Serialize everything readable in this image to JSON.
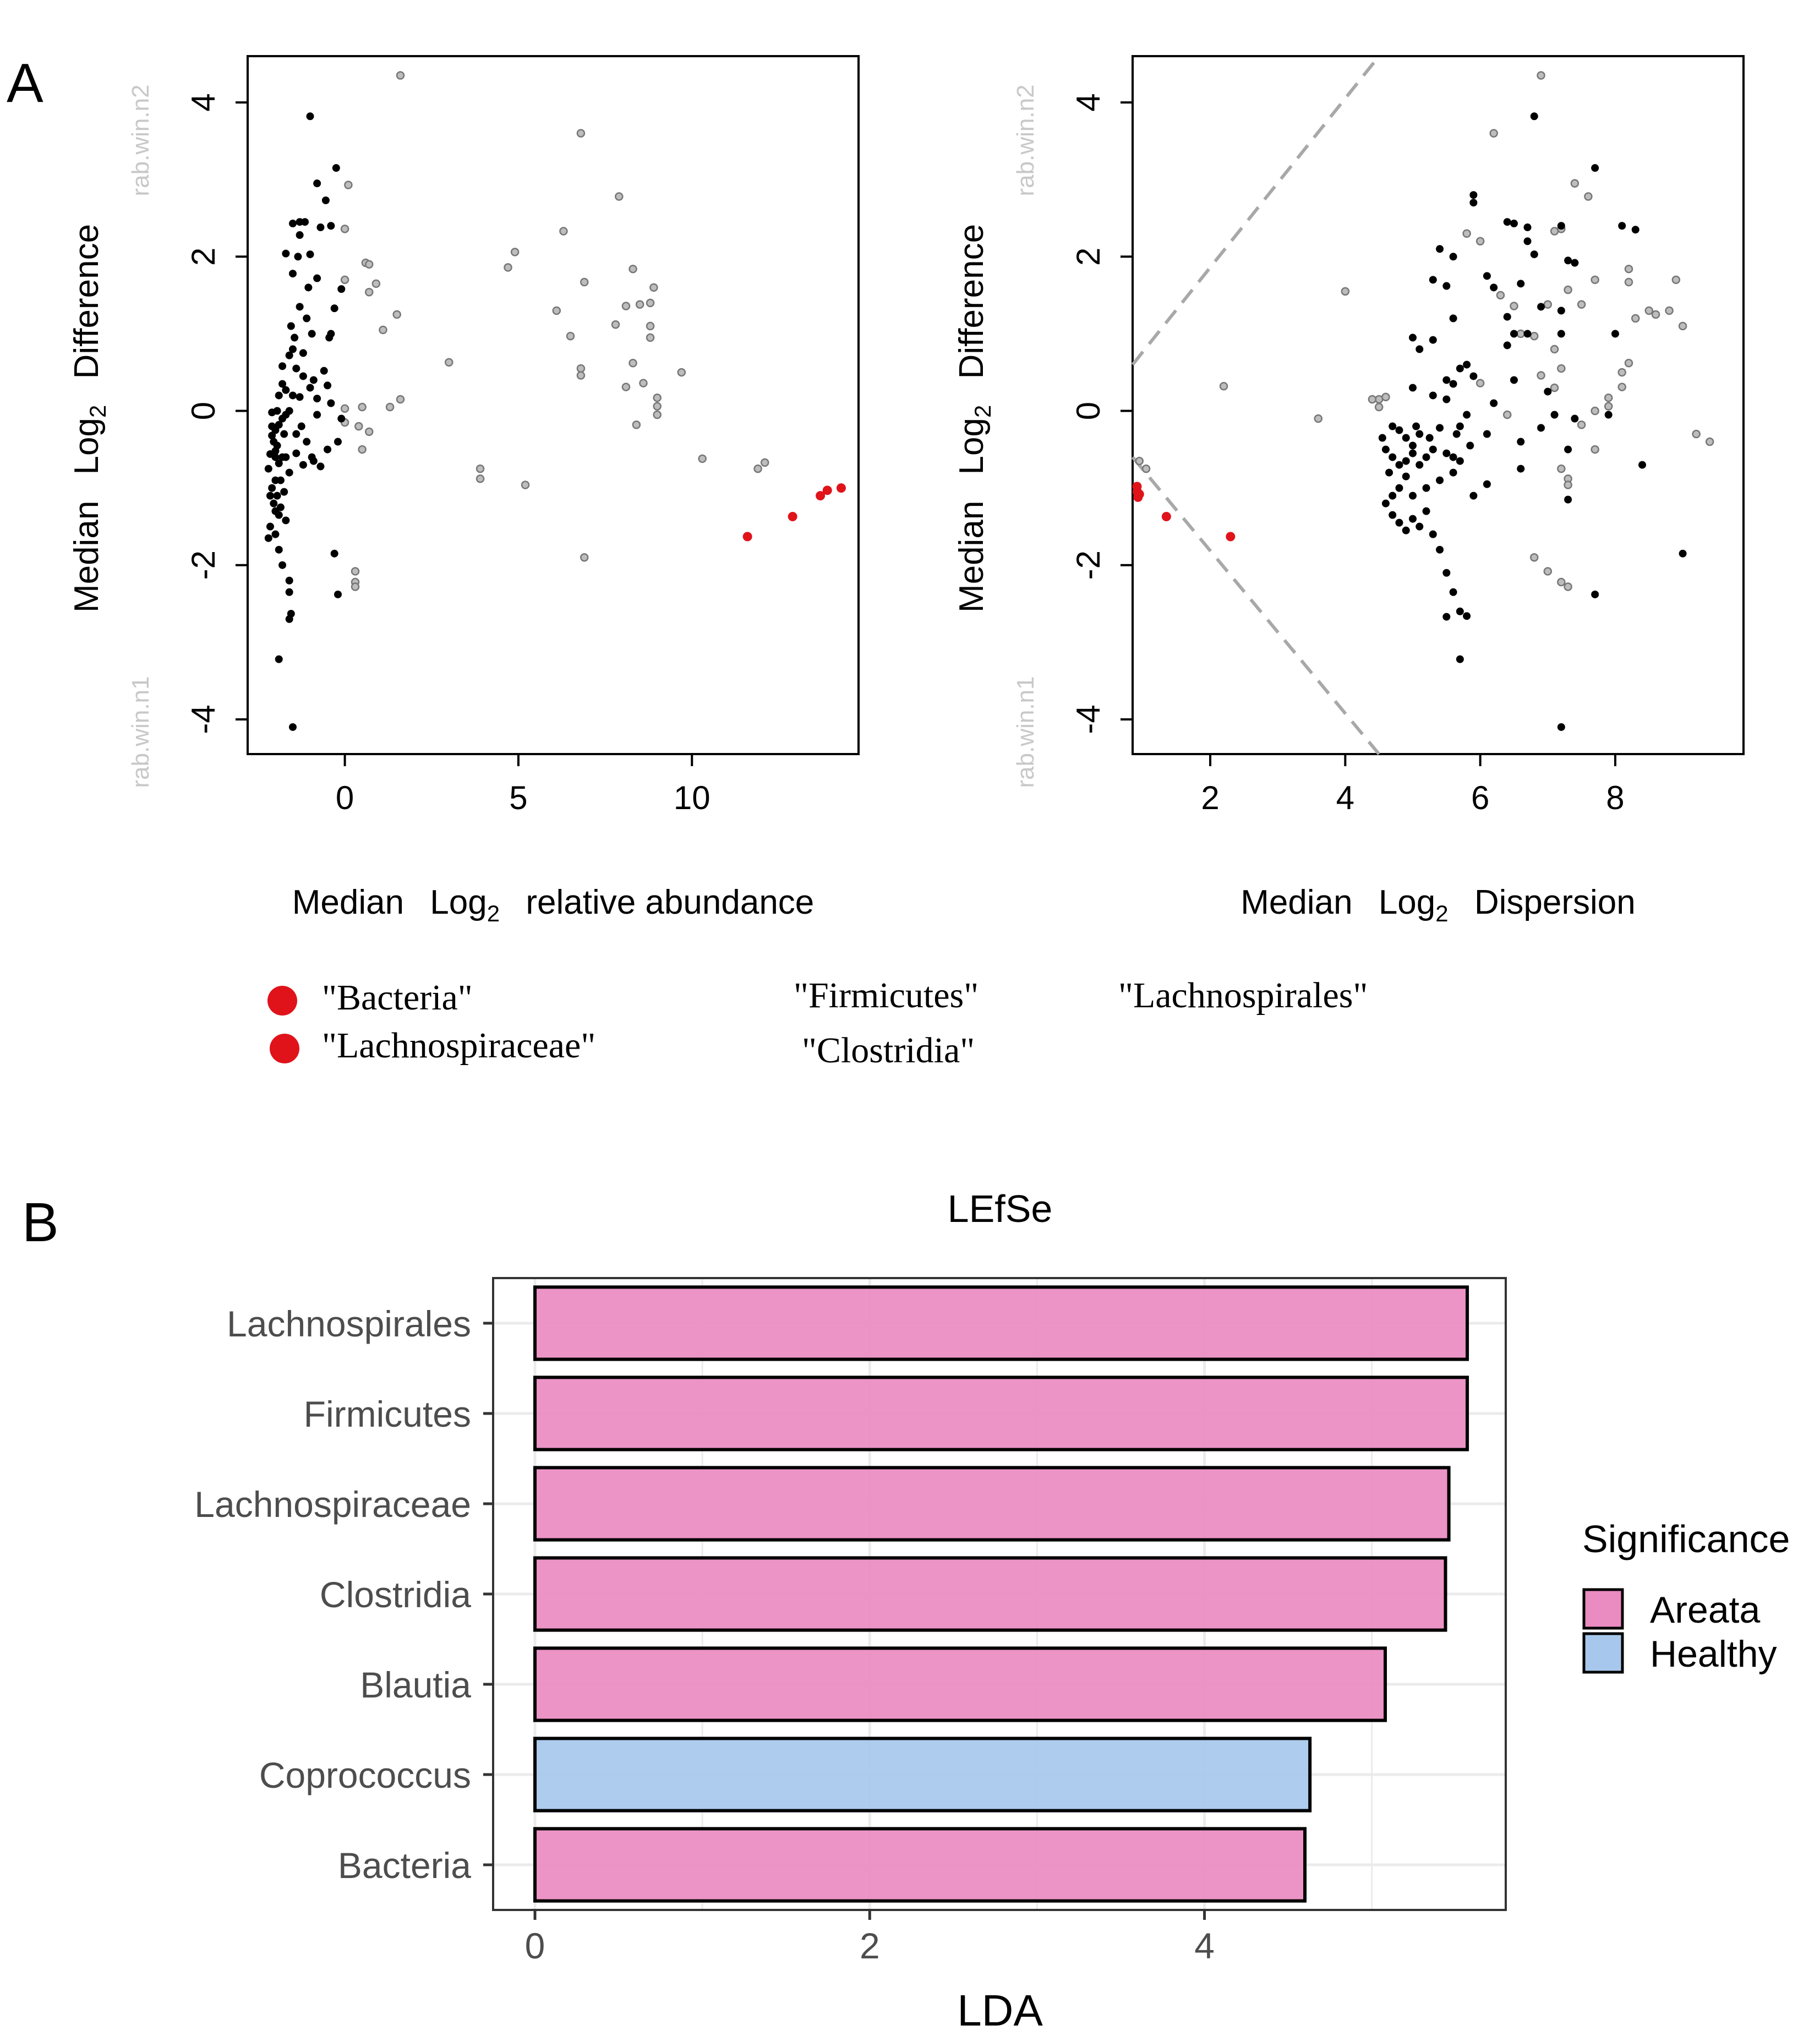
{
  "panel_labels": {
    "a": "A",
    "b": "B"
  },
  "colors": {
    "significant": "#e0131a",
    "abundant_dot": "#000000",
    "rare_dot": "#9e9e9e",
    "tick_text_gray": "#bdbdbd",
    "areata": "#ea8bc1",
    "healthy": "#a7c8ec",
    "effect_line": "#a8a8a8"
  },
  "legend_a": {
    "items": [
      "\"Bacteria\"",
      "\"Lachnospiraceae\""
    ],
    "extra_labels": [
      "\"Firmicutes\"",
      "\"Lachnospirales\"",
      "\"Clostridia\""
    ]
  },
  "chart_data": [
    {
      "id": "bland_altman",
      "type": "scatter",
      "xlabel": {
        "pre": "Median",
        "log": "Log",
        "sub": "2",
        "post": "relative abundance"
      },
      "ylabel": {
        "pre": "Median",
        "log": "Log",
        "sub": "2",
        "post": "Difference"
      },
      "group_top": "rab.win.n2",
      "group_bottom": "rab.win.n1",
      "xlim": [
        -2.8,
        14.8
      ],
      "ylim": [
        -4.45,
        4.6
      ],
      "xticks": [
        0,
        5,
        10
      ],
      "yticks": [
        -4,
        -2,
        0,
        2,
        4
      ],
      "significant": [
        [
          11.6,
          -1.63
        ],
        [
          12.9,
          -1.37
        ],
        [
          13.7,
          -1.1
        ],
        [
          13.9,
          -1.03
        ],
        [
          14.3,
          -1.0
        ]
      ],
      "rare": [
        [
          1.6,
          4.35
        ],
        [
          6.8,
          3.6
        ],
        [
          7.9,
          2.78
        ],
        [
          6.3,
          2.33
        ],
        [
          4.9,
          2.06
        ],
        [
          4.7,
          1.86
        ],
        [
          8.3,
          1.84
        ],
        [
          6.9,
          1.67
        ],
        [
          8.9,
          1.6
        ],
        [
          8.5,
          1.38
        ],
        [
          8.1,
          1.36
        ],
        [
          8.8,
          1.4
        ],
        [
          6.1,
          1.3
        ],
        [
          7.8,
          1.12
        ],
        [
          8.8,
          1.1
        ],
        [
          8.8,
          0.95
        ],
        [
          6.5,
          0.97
        ],
        [
          6.8,
          0.55
        ],
        [
          6.8,
          0.46
        ],
        [
          8.3,
          0.62
        ],
        [
          9.7,
          0.5
        ],
        [
          8.6,
          0.36
        ],
        [
          8.1,
          0.31
        ],
        [
          9.0,
          0.17
        ],
        [
          9.0,
          0.06
        ],
        [
          9.0,
          -0.05
        ],
        [
          8.4,
          -0.18
        ],
        [
          3.0,
          0.63
        ],
        [
          10.3,
          -0.62
        ],
        [
          11.9,
          -0.75
        ],
        [
          12.1,
          -0.67
        ],
        [
          3.9,
          -0.75
        ],
        [
          3.9,
          -0.88
        ],
        [
          5.2,
          -0.96
        ],
        [
          6.9,
          -1.9
        ],
        [
          0.1,
          2.93
        ],
        [
          0.6,
          1.92
        ],
        [
          0.7,
          1.9
        ],
        [
          0.9,
          1.65
        ],
        [
          0.7,
          1.54
        ],
        [
          1.5,
          1.25
        ],
        [
          1.1,
          1.05
        ],
        [
          0.0,
          1.7
        ],
        [
          1.6,
          0.15
        ],
        [
          1.3,
          0.05
        ],
        [
          0.5,
          0.05
        ],
        [
          0.4,
          -0.2
        ],
        [
          0.7,
          -0.27
        ],
        [
          0.3,
          -2.08
        ],
        [
          0.3,
          -2.22
        ],
        [
          0.3,
          -2.28
        ],
        [
          0.0,
          -0.15
        ],
        [
          0.0,
          0.03
        ],
        [
          0.5,
          -0.5
        ],
        [
          0.0,
          2.36
        ]
      ],
      "abundant": [
        [
          -1.0,
          3.82
        ],
        [
          -0.25,
          3.15
        ],
        [
          -0.8,
          2.95
        ],
        [
          -0.55,
          2.73
        ],
        [
          -1.3,
          2.45
        ],
        [
          -1.5,
          2.43
        ],
        [
          -1.3,
          2.28
        ],
        [
          -0.7,
          2.38
        ],
        [
          -0.4,
          2.4
        ],
        [
          -1.0,
          2.03
        ],
        [
          -1.7,
          2.04
        ],
        [
          -1.5,
          1.78
        ],
        [
          -0.8,
          1.72
        ],
        [
          -0.1,
          1.58
        ],
        [
          -0.3,
          1.33
        ],
        [
          -1.3,
          1.35
        ],
        [
          -1.1,
          1.2
        ],
        [
          -1.55,
          1.1
        ],
        [
          -0.95,
          1.0
        ],
        [
          -0.4,
          1.0
        ],
        [
          -0.45,
          0.95
        ],
        [
          -1.5,
          0.8
        ],
        [
          -1.6,
          0.72
        ],
        [
          -1.2,
          0.75
        ],
        [
          -1.8,
          0.58
        ],
        [
          -1.4,
          0.55
        ],
        [
          -0.9,
          0.4
        ],
        [
          -0.5,
          0.33
        ],
        [
          -1.7,
          0.27
        ],
        [
          -1.9,
          0.2
        ],
        [
          -1.3,
          0.18
        ],
        [
          -0.8,
          0.16
        ],
        [
          -0.4,
          0.1
        ],
        [
          -1.6,
          0.0
        ],
        [
          -2.1,
          -0.02
        ],
        [
          -1.8,
          -0.1
        ],
        [
          -1.9,
          -0.18
        ],
        [
          -2.0,
          -0.25
        ],
        [
          -2.1,
          -0.32
        ],
        [
          -2.05,
          -0.4
        ],
        [
          -1.95,
          -0.45
        ],
        [
          -2.0,
          -0.52
        ],
        [
          -2.15,
          -0.56
        ],
        [
          -1.8,
          -0.6
        ],
        [
          -1.9,
          -0.68
        ],
        [
          -2.2,
          -0.75
        ],
        [
          -1.7,
          -0.6
        ],
        [
          -1.4,
          -0.55
        ],
        [
          -0.5,
          -0.5
        ],
        [
          -0.9,
          -0.65
        ],
        [
          -0.7,
          -0.72
        ],
        [
          -1.2,
          -0.7
        ],
        [
          -1.6,
          -0.8
        ],
        [
          -2.0,
          -0.9
        ],
        [
          -2.1,
          -1.0
        ],
        [
          -1.95,
          -1.1
        ],
        [
          -2.05,
          -1.2
        ],
        [
          -2.0,
          -1.3
        ],
        [
          -1.9,
          -1.35
        ],
        [
          -2.15,
          -1.5
        ],
        [
          -1.7,
          -1.42
        ],
        [
          -2.0,
          -1.6
        ],
        [
          -1.9,
          -1.8
        ],
        [
          -1.8,
          -2.0
        ],
        [
          -1.6,
          -2.2
        ],
        [
          -1.6,
          -2.35
        ],
        [
          -1.55,
          -2.63
        ],
        [
          -1.6,
          -2.7
        ],
        [
          -1.9,
          -3.22
        ],
        [
          -1.5,
          -4.1
        ],
        [
          -0.3,
          -1.85
        ],
        [
          -0.2,
          -2.38
        ],
        [
          -0.1,
          -0.1
        ],
        [
          -0.2,
          -0.4
        ],
        [
          -1.2,
          0.45
        ],
        [
          -1.0,
          0.3
        ],
        [
          -0.6,
          0.52
        ],
        [
          -1.45,
          0.95
        ],
        [
          -1.8,
          0.35
        ],
        [
          -1.95,
          0.0
        ],
        [
          -2.1,
          -0.2
        ],
        [
          -2.0,
          -0.6
        ],
        [
          -1.85,
          -0.9
        ],
        [
          -1.75,
          -1.05
        ],
        [
          -1.85,
          -1.25
        ],
        [
          -2.15,
          -1.1
        ],
        [
          -2.2,
          -1.65
        ],
        [
          -1.75,
          -0.3
        ],
        [
          -1.7,
          -0.05
        ],
        [
          -1.5,
          0.2
        ],
        [
          -1.4,
          -0.3
        ],
        [
          -1.25,
          -0.2
        ],
        [
          -1.1,
          -0.4
        ],
        [
          -0.95,
          -0.6
        ],
        [
          -0.8,
          -0.05
        ],
        [
          -1.05,
          1.6
        ],
        [
          -1.35,
          2.0
        ],
        [
          -1.15,
          2.45
        ]
      ]
    },
    {
      "id": "effect_plot",
      "type": "scatter",
      "xlabel": {
        "pre": "Median",
        "log": "Log",
        "sub": "2",
        "post": "Dispersion"
      },
      "ylabel": {
        "pre": "Median",
        "log": "Log",
        "sub": "2",
        "post": "Difference"
      },
      "group_top": "rab.win.n2",
      "group_bottom": "rab.win.n1",
      "xlim": [
        0.85,
        9.9
      ],
      "ylim": [
        -4.45,
        4.6
      ],
      "xticks": [
        2,
        4,
        6,
        8
      ],
      "yticks": [
        -4,
        -2,
        0,
        2,
        4
      ],
      "effect_lines": [
        [
          [
            0.85,
            0.6
          ],
          [
            4.5,
            4.6
          ]
        ],
        [
          [
            0.85,
            -0.6
          ],
          [
            4.5,
            -4.45
          ]
        ]
      ],
      "significant": [
        [
          0.9,
          -0.98
        ],
        [
          0.92,
          -1.05
        ],
        [
          0.95,
          -1.08
        ],
        [
          0.93,
          -1.12
        ],
        [
          1.35,
          -1.37
        ],
        [
          2.3,
          -1.63
        ]
      ],
      "rare": [
        [
          6.9,
          4.35
        ],
        [
          6.2,
          3.6
        ],
        [
          7.4,
          2.95
        ],
        [
          7.6,
          2.78
        ],
        [
          7.1,
          2.33
        ],
        [
          7.2,
          2.36
        ],
        [
          8.2,
          1.84
        ],
        [
          8.2,
          1.67
        ],
        [
          8.9,
          1.7
        ],
        [
          7.7,
          1.7
        ],
        [
          7.3,
          1.57
        ],
        [
          6.3,
          1.5
        ],
        [
          7.0,
          1.38
        ],
        [
          6.5,
          1.36
        ],
        [
          7.5,
          1.38
        ],
        [
          8.8,
          1.3
        ],
        [
          9.0,
          1.1
        ],
        [
          6.6,
          1.0
        ],
        [
          6.8,
          0.97
        ],
        [
          7.1,
          0.8
        ],
        [
          8.2,
          0.62
        ],
        [
          8.1,
          0.5
        ],
        [
          7.2,
          0.55
        ],
        [
          6.9,
          0.46
        ],
        [
          6.0,
          0.36
        ],
        [
          7.1,
          0.3
        ],
        [
          8.1,
          0.31
        ],
        [
          7.9,
          0.17
        ],
        [
          7.9,
          0.06
        ],
        [
          7.7,
          0.0
        ],
        [
          7.5,
          -0.18
        ],
        [
          7.2,
          -0.75
        ],
        [
          7.3,
          -0.88
        ],
        [
          7.3,
          -0.96
        ],
        [
          6.8,
          -1.9
        ],
        [
          7.0,
          -2.08
        ],
        [
          7.2,
          -2.22
        ],
        [
          7.3,
          -2.28
        ],
        [
          4.0,
          1.55
        ],
        [
          2.2,
          0.32
        ],
        [
          3.6,
          -0.1
        ],
        [
          4.5,
          0.15
        ],
        [
          4.6,
          0.18
        ],
        [
          4.4,
          0.15
        ],
        [
          4.5,
          0.05
        ],
        [
          1.05,
          -0.75
        ],
        [
          0.95,
          -0.65
        ],
        [
          9.2,
          -0.3
        ],
        [
          9.4,
          -0.4
        ],
        [
          7.7,
          -0.5
        ],
        [
          8.3,
          1.2
        ],
        [
          8.5,
          1.3
        ],
        [
          8.6,
          1.25
        ],
        [
          6.4,
          -0.05
        ],
        [
          5.8,
          2.3
        ],
        [
          6.0,
          2.2
        ]
      ],
      "abundant": [
        [
          6.8,
          3.82
        ],
        [
          7.7,
          3.15
        ],
        [
          6.4,
          2.45
        ],
        [
          6.5,
          2.43
        ],
        [
          6.7,
          2.38
        ],
        [
          7.2,
          2.4
        ],
        [
          8.1,
          2.4
        ],
        [
          8.3,
          2.35
        ],
        [
          5.9,
          2.7
        ],
        [
          5.9,
          2.8
        ],
        [
          6.7,
          2.2
        ],
        [
          5.4,
          2.1
        ],
        [
          5.6,
          2.0
        ],
        [
          6.8,
          2.03
        ],
        [
          7.3,
          1.95
        ],
        [
          7.4,
          1.92
        ],
        [
          5.3,
          1.7
        ],
        [
          6.1,
          1.75
        ],
        [
          6.6,
          1.65
        ],
        [
          5.5,
          1.62
        ],
        [
          6.2,
          1.6
        ],
        [
          6.9,
          1.35
        ],
        [
          7.2,
          1.3
        ],
        [
          5.6,
          1.2
        ],
        [
          6.4,
          1.22
        ],
        [
          6.5,
          1.0
        ],
        [
          6.7,
          1.0
        ],
        [
          7.2,
          1.0
        ],
        [
          8.0,
          1.0
        ],
        [
          5.3,
          0.92
        ],
        [
          5.0,
          0.95
        ],
        [
          5.1,
          0.8
        ],
        [
          6.4,
          0.85
        ],
        [
          5.8,
          0.6
        ],
        [
          5.7,
          0.55
        ],
        [
          5.9,
          0.45
        ],
        [
          5.5,
          0.4
        ],
        [
          5.6,
          0.35
        ],
        [
          6.5,
          0.4
        ],
        [
          7.0,
          0.25
        ],
        [
          5.0,
          0.3
        ],
        [
          5.3,
          0.2
        ],
        [
          5.5,
          0.15
        ],
        [
          6.2,
          0.1
        ],
        [
          7.1,
          -0.05
        ],
        [
          7.4,
          -0.1
        ],
        [
          7.9,
          -0.05
        ],
        [
          5.8,
          -0.05
        ],
        [
          5.7,
          -0.2
        ],
        [
          5.4,
          -0.22
        ],
        [
          6.9,
          -0.22
        ],
        [
          6.1,
          -0.3
        ],
        [
          6.6,
          -0.4
        ],
        [
          7.3,
          -0.5
        ],
        [
          5.1,
          -0.3
        ],
        [
          5.0,
          -0.45
        ],
        [
          4.9,
          -0.35
        ],
        [
          4.8,
          -0.25
        ],
        [
          4.7,
          -0.2
        ],
        [
          4.6,
          -0.5
        ],
        [
          4.7,
          -0.6
        ],
        [
          4.8,
          -0.7
        ],
        [
          4.9,
          -0.65
        ],
        [
          5.0,
          -0.55
        ],
        [
          5.1,
          -0.7
        ],
        [
          5.2,
          -0.6
        ],
        [
          5.3,
          -0.5
        ],
        [
          5.5,
          -0.55
        ],
        [
          5.6,
          -0.6
        ],
        [
          5.7,
          -0.65
        ],
        [
          5.6,
          -0.8
        ],
        [
          5.4,
          -0.9
        ],
        [
          5.2,
          -1.0
        ],
        [
          5.0,
          -1.1
        ],
        [
          4.8,
          -1.0
        ],
        [
          4.7,
          -1.1
        ],
        [
          4.6,
          -1.2
        ],
        [
          4.7,
          -1.35
        ],
        [
          4.8,
          -1.45
        ],
        [
          4.9,
          -1.55
        ],
        [
          5.0,
          -1.4
        ],
        [
          5.1,
          -1.5
        ],
        [
          5.2,
          -1.3
        ],
        [
          5.3,
          -1.6
        ],
        [
          5.4,
          -1.8
        ],
        [
          5.5,
          -2.1
        ],
        [
          5.6,
          -2.35
        ],
        [
          5.7,
          -2.6
        ],
        [
          5.5,
          -2.67
        ],
        [
          5.8,
          -2.66
        ],
        [
          5.7,
          -3.22
        ],
        [
          7.2,
          -4.1
        ],
        [
          9.0,
          -1.85
        ],
        [
          7.7,
          -2.38
        ],
        [
          8.4,
          -0.7
        ],
        [
          7.3,
          -1.15
        ],
        [
          6.6,
          -0.75
        ],
        [
          6.1,
          -0.95
        ],
        [
          5.9,
          -1.1
        ],
        [
          4.9,
          -0.85
        ],
        [
          4.55,
          -0.35
        ],
        [
          4.65,
          -0.8
        ],
        [
          5.05,
          -0.2
        ],
        [
          5.25,
          -0.35
        ],
        [
          5.65,
          -0.3
        ],
        [
          5.85,
          -0.45
        ]
      ]
    },
    {
      "id": "lefse",
      "type": "bar",
      "orientation": "horizontal",
      "title": "LEfSe",
      "xlabel": "LDA",
      "xlim": [
        -0.25,
        5.8
      ],
      "xticks": [
        0,
        2,
        4
      ],
      "categories": [
        "Lachnospirales",
        "Firmicutes",
        "Lachnospiraceae",
        "Clostridia",
        "Blautia",
        "Coprococcus",
        "Bacteria"
      ],
      "values": [
        5.57,
        5.57,
        5.46,
        5.44,
        5.08,
        4.63,
        4.6
      ],
      "groups": [
        "Areata",
        "Areata",
        "Areata",
        "Areata",
        "Areata",
        "Healthy",
        "Areata"
      ],
      "legend_title": "Significance",
      "legend": [
        "Areata",
        "Healthy"
      ]
    }
  ]
}
